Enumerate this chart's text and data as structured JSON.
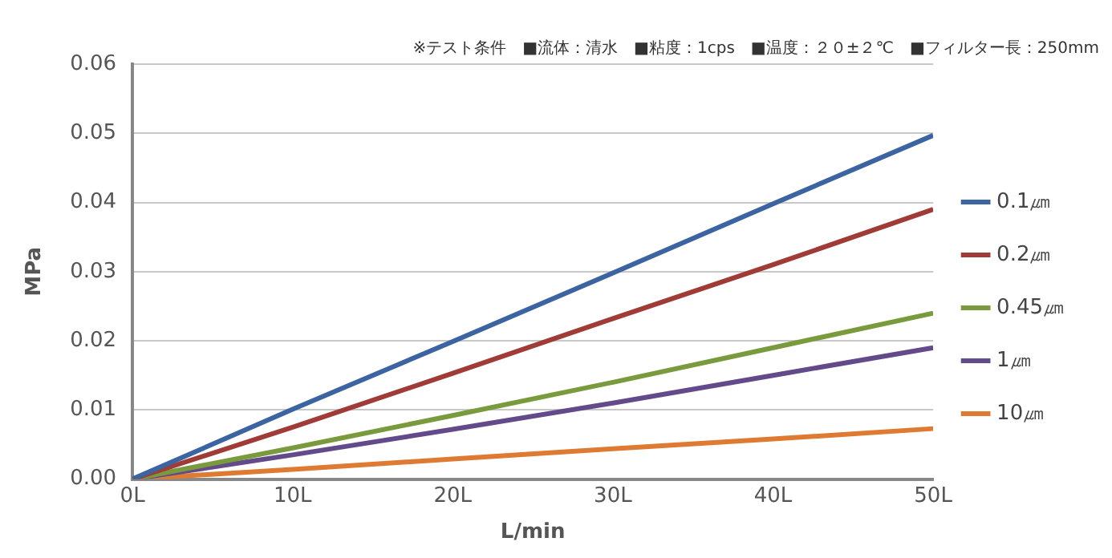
{
  "chart_data": {
    "type": "line",
    "xlabel": "L/min",
    "ylabel": "MPa",
    "annotations": [
      "※テスト条件　■流体：清水　■粘度：1cps　■温度：２０±２℃　■フィルター長：250mm"
    ],
    "x": [
      0,
      10,
      20,
      30,
      40,
      50
    ],
    "xlim": [
      0,
      50
    ],
    "xticks": [
      {
        "value": 0,
        "label": "0L"
      },
      {
        "value": 10,
        "label": "10L"
      },
      {
        "value": 20,
        "label": "20L"
      },
      {
        "value": 30,
        "label": "30L"
      },
      {
        "value": 40,
        "label": "40L"
      },
      {
        "value": 50,
        "label": "50L"
      }
    ],
    "ylim": [
      0,
      0.06
    ],
    "yticks": [
      {
        "value": 0,
        "label": "0.00"
      },
      {
        "value": 0.01,
        "label": "0.01"
      },
      {
        "value": 0.02,
        "label": "0.02"
      },
      {
        "value": 0.03,
        "label": "0.03"
      },
      {
        "value": 0.04,
        "label": "0.04"
      },
      {
        "value": 0.05,
        "label": "0.05"
      },
      {
        "value": 0.06,
        "label": "0.06"
      }
    ],
    "grid": "y",
    "legend": "right",
    "marker": "none",
    "line_style": "solid",
    "series": [
      {
        "name": "0.1㎛",
        "color": "#3b64a0",
        "values": [
          0,
          0.0101,
          0.0199,
          0.0298,
          0.0398,
          0.0497
        ]
      },
      {
        "name": "0.2㎛",
        "color": "#a03c38",
        "values": [
          0,
          0.0075,
          0.0153,
          0.0232,
          0.031,
          0.039
        ]
      },
      {
        "name": "0.45㎛",
        "color": "#7a9a3e",
        "values": [
          0,
          0.0045,
          0.0092,
          0.014,
          0.019,
          0.024
        ]
      },
      {
        "name": "1㎛",
        "color": "#634a8a",
        "values": [
          0,
          0.0035,
          0.0072,
          0.011,
          0.015,
          0.019
        ]
      },
      {
        "name": "10㎛",
        "color": "#de7a32",
        "values": [
          0,
          0.0014,
          0.0029,
          0.0044,
          0.0058,
          0.0073
        ]
      }
    ]
  }
}
